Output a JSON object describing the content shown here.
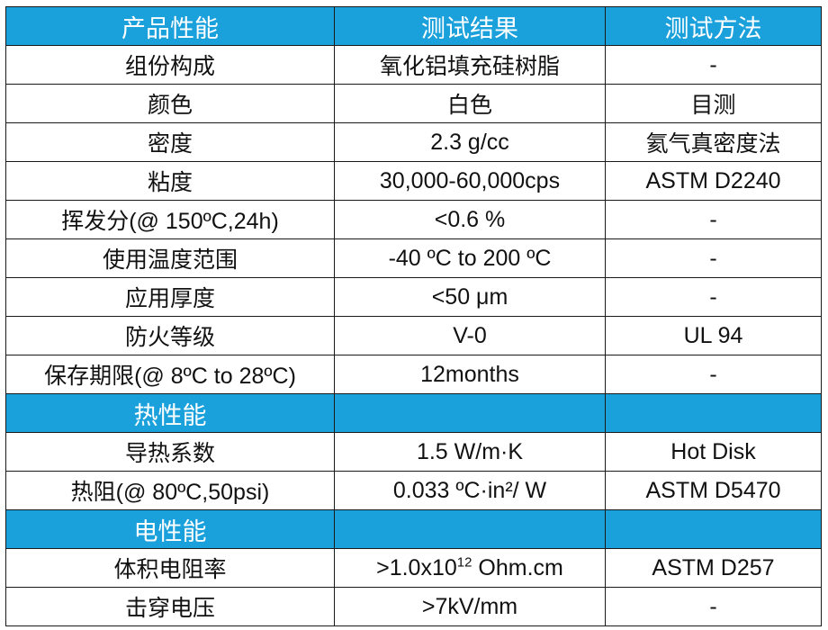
{
  "header": {
    "col1": "产品性能",
    "col2": "测试结果",
    "col3": "测试方法"
  },
  "general_rows": [
    {
      "property": "组份构成",
      "result": "氧化铝填充硅树脂",
      "method": "-"
    },
    {
      "property": "颜色",
      "result": "白色",
      "method": "目测"
    },
    {
      "property": "密度",
      "result": "2.3 g/cc",
      "method": "氦气真密度法"
    },
    {
      "property": "粘度",
      "result": "30,000-60,000cps",
      "method": "ASTM D2240"
    },
    {
      "property": "挥发分(@ 150ºC,24h)",
      "result": "<0.6 %",
      "method": "-"
    },
    {
      "property": "使用温度范围",
      "result": "-40 ºC to 200 ºC",
      "method": "-"
    },
    {
      "property": "应用厚度",
      "result": "<50 μm",
      "method": "-"
    },
    {
      "property": "防火等级",
      "result": "V-0",
      "method": "UL 94"
    },
    {
      "property": "保存期限(@ 8ºC to 28ºC)",
      "result": "12months",
      "method": "-"
    }
  ],
  "thermal_section": {
    "title": "热性能",
    "rows": [
      {
        "property": "导热系数",
        "result": "1.5 W/m·K",
        "method": "Hot Disk"
      },
      {
        "property": "热阻(@ 80ºC,50psi)",
        "result": "0.033 ºC·in²/ W",
        "method": "ASTM D5470"
      }
    ]
  },
  "electrical_section": {
    "title": "电性能",
    "resistivity": {
      "property": "体积电阻率",
      "result_prefix": ">1.0x10",
      "result_exponent": "12",
      "result_suffix": " Ohm.cm",
      "method": "ASTM D257"
    },
    "breakdown": {
      "property": "击穿电压",
      "result": ">7kV/mm",
      "method": "-"
    }
  },
  "colors": {
    "header_bg": "#1aa0db",
    "header_text": "#ffffff",
    "grid_line": "#1a1a1a",
    "body_text": "#111111"
  }
}
